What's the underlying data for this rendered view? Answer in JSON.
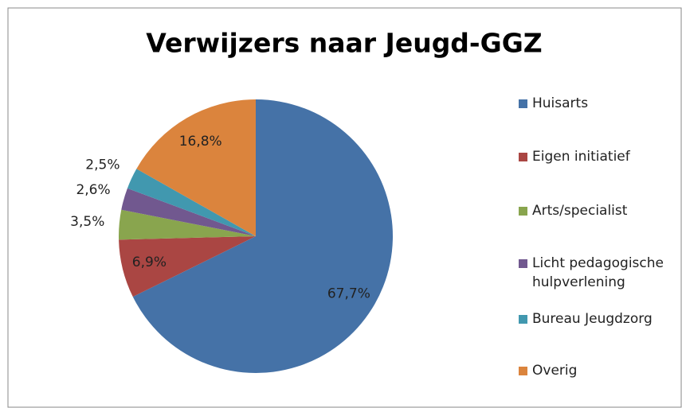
{
  "chart_data": {
    "type": "pie",
    "title": "Verwijzers naar Jeugd-GGZ",
    "categories": [
      "Huisarts",
      "Eigen initiatief",
      "Arts/specialist",
      "Licht pedagogische hulpverlening",
      "Bureau Jeugdzorg",
      "Overig"
    ],
    "values": [
      67.7,
      6.9,
      3.5,
      2.6,
      2.5,
      16.8
    ],
    "value_labels": [
      "67,7%",
      "6,9%",
      "3,5%",
      "2,6%",
      "2,5%",
      "16,8%"
    ],
    "colors": [
      "#4572a7",
      "#aa4643",
      "#89a54e",
      "#71588f",
      "#4198af",
      "#db843d"
    ],
    "legend": "right"
  }
}
